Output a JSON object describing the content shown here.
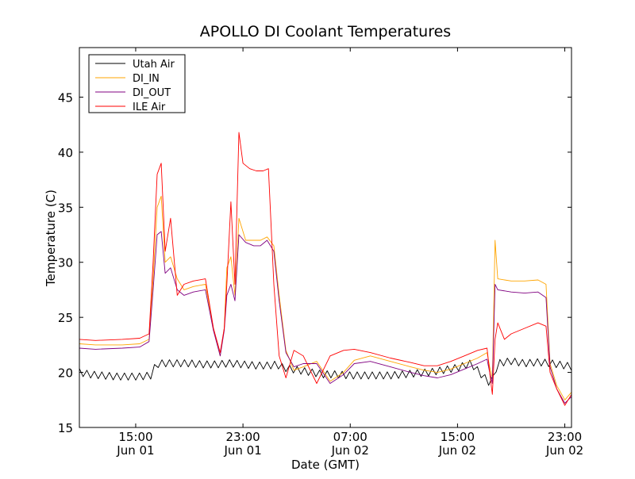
{
  "chart_data": {
    "type": "line",
    "title": "APOLLO DI Coolant Temperatures",
    "xlabel": "Date (GMT)",
    "ylabel": "Temperature (C)",
    "xlim": [
      10.8,
      47.5
    ],
    "ylim": [
      15,
      49.5
    ],
    "yticks": [
      15,
      20,
      25,
      30,
      35,
      40,
      45
    ],
    "xticks": [
      {
        "x": 15,
        "time": "15:00",
        "date": "Jun 01"
      },
      {
        "x": 23,
        "time": "23:00",
        "date": "Jun 01"
      },
      {
        "x": 31,
        "time": "07:00",
        "date": "Jun 02"
      },
      {
        "x": 39,
        "time": "15:00",
        "date": "Jun 02"
      },
      {
        "x": 47,
        "time": "23:00",
        "date": "Jun 02"
      }
    ],
    "legend_position": "top-left",
    "x_unit": "hours since Jun 01 00:00 GMT",
    "series": [
      {
        "name": "Utah Air",
        "color": "#000000",
        "x": [
          10.8,
          11.5,
          12.5,
          13.5,
          14.5,
          15.3,
          16.2,
          16.5,
          17,
          18,
          19,
          20,
          21,
          22,
          23,
          24,
          25,
          25.5,
          26,
          27,
          28,
          29,
          30,
          31,
          32,
          33,
          34,
          35,
          36,
          37,
          38,
          39,
          40,
          41,
          41.5,
          42,
          43,
          44,
          45,
          46,
          47,
          47.5
        ],
        "y": [
          20.0,
          19.8,
          19.7,
          19.6,
          19.6,
          19.6,
          19.7,
          20.7,
          20.8,
          20.8,
          20.8,
          20.7,
          20.7,
          20.8,
          20.7,
          20.6,
          20.6,
          20.7,
          20.4,
          20.2,
          20.0,
          19.8,
          19.8,
          19.7,
          19.7,
          19.7,
          19.7,
          19.8,
          19.9,
          20.0,
          20.2,
          20.4,
          20.8,
          19.5,
          18.9,
          20.8,
          21.0,
          20.8,
          20.9,
          20.8,
          20.6,
          20.5
        ],
        "sawtooth": true
      },
      {
        "name": "DI_IN",
        "color": "#ffa500",
        "x": [
          10.8,
          12,
          14,
          15.3,
          16,
          16.3,
          16.6,
          16.9,
          17.2,
          17.6,
          18.1,
          18.6,
          19.3,
          20.2,
          20.8,
          21.3,
          21.6,
          21.8,
          22.1,
          22.4,
          22.7,
          23.2,
          23.8,
          24.3,
          24.8,
          25.3,
          25.7,
          26.2,
          26.8,
          27.5,
          28.5,
          29.5,
          30.5,
          31.3,
          32.5,
          34,
          35.5,
          36.5,
          37.5,
          38.5,
          39.5,
          40.5,
          41.2,
          41.4,
          41.6,
          41.8,
          42.0,
          43.0,
          44.0,
          45.0,
          45.6,
          45.9,
          46.4,
          47.0,
          47.5
        ],
        "y": [
          22.6,
          22.5,
          22.5,
          22.6,
          23.0,
          28.5,
          35.0,
          36.0,
          30.0,
          30.5,
          28.5,
          27.5,
          27.8,
          28.0,
          24.0,
          21.5,
          24.0,
          29.5,
          30.5,
          27.0,
          34.0,
          32.0,
          32.0,
          32.0,
          32.3,
          31.5,
          27.0,
          22.0,
          20.2,
          20.5,
          21.0,
          19.2,
          20.0,
          21.1,
          21.5,
          21.0,
          20.5,
          20.2,
          20.0,
          20.3,
          20.8,
          21.3,
          21.8,
          20.5,
          19.5,
          32.0,
          28.5,
          28.3,
          28.3,
          28.4,
          28.0,
          20.8,
          18.8,
          17.5,
          18.2
        ]
      },
      {
        "name": "DI_OUT",
        "color": "#800080",
        "x": [
          10.8,
          12,
          14,
          15.3,
          16,
          16.3,
          16.6,
          16.9,
          17.2,
          17.6,
          18.1,
          18.6,
          19.3,
          20.2,
          20.8,
          21.3,
          21.6,
          21.8,
          22.1,
          22.4,
          22.7,
          23.2,
          23.8,
          24.3,
          24.8,
          25.3,
          25.7,
          26.2,
          26.8,
          27.5,
          28.5,
          29.5,
          30.5,
          31.3,
          32.5,
          34,
          35.5,
          36.5,
          37.5,
          38.5,
          39.5,
          40.5,
          41.2,
          41.4,
          41.6,
          41.8,
          42.0,
          43.0,
          44.0,
          45.0,
          45.6,
          45.9,
          46.4,
          47.0,
          47.5
        ],
        "y": [
          22.2,
          22.1,
          22.2,
          22.3,
          22.8,
          27.5,
          32.5,
          32.8,
          29.0,
          29.5,
          27.5,
          27.0,
          27.3,
          27.5,
          23.8,
          21.5,
          23.8,
          27.0,
          28.0,
          26.5,
          32.5,
          31.8,
          31.5,
          31.5,
          32.0,
          31.0,
          26.5,
          21.8,
          20.5,
          20.8,
          20.8,
          19.0,
          19.8,
          20.8,
          21.0,
          20.5,
          20.0,
          19.7,
          19.5,
          19.8,
          20.3,
          20.8,
          21.2,
          20.0,
          19.0,
          28.0,
          27.5,
          27.3,
          27.2,
          27.3,
          26.8,
          20.5,
          18.5,
          17.2,
          17.8
        ]
      },
      {
        "name": "ILE Air",
        "color": "#ff0000",
        "x": [
          10.8,
          12,
          14,
          15.3,
          16,
          16.3,
          16.6,
          16.9,
          17.2,
          17.6,
          18.1,
          18.6,
          19.3,
          20.2,
          20.8,
          21.3,
          21.6,
          21.8,
          22.1,
          22.4,
          22.7,
          23.0,
          23.5,
          24.0,
          24.5,
          24.9,
          25.3,
          25.7,
          26.2,
          26.8,
          27.5,
          28.5,
          29.5,
          30.5,
          31.3,
          32.5,
          34,
          35.5,
          36.5,
          37.5,
          38.5,
          39.5,
          40.5,
          41.2,
          41.4,
          41.6,
          41.8,
          42.0,
          42.5,
          43.0,
          44.0,
          45.0,
          45.6,
          45.9,
          46.4,
          47.0,
          47.5
        ],
        "y": [
          23.0,
          22.9,
          23.0,
          23.1,
          23.5,
          30.0,
          38.0,
          39.0,
          31.0,
          34.0,
          27.0,
          28.0,
          28.3,
          28.5,
          24.0,
          21.8,
          24.0,
          28.0,
          35.5,
          28.0,
          41.8,
          39.0,
          38.5,
          38.3,
          38.3,
          38.5,
          28.0,
          21.5,
          19.5,
          22.0,
          21.5,
          19.0,
          21.5,
          22.0,
          22.1,
          21.8,
          21.3,
          20.9,
          20.6,
          20.6,
          21.0,
          21.5,
          22.0,
          22.2,
          20.0,
          18.0,
          23.0,
          24.5,
          23.0,
          23.5,
          24.0,
          24.5,
          24.2,
          20.0,
          18.5,
          17.0,
          18.0
        ]
      }
    ]
  }
}
